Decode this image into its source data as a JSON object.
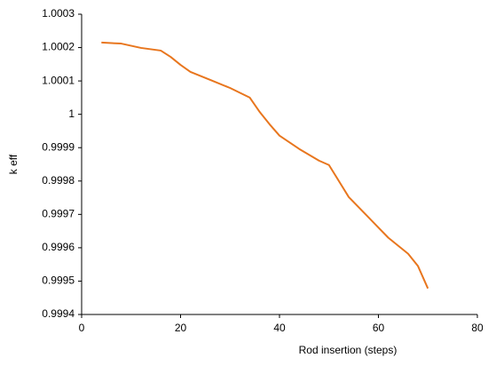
{
  "chart_data": {
    "type": "line",
    "xlabel": "Rod insertion (steps)",
    "ylabel": "k eff",
    "x": [
      4,
      8,
      12,
      16,
      18,
      20,
      22,
      26,
      30,
      34,
      36,
      38,
      40,
      44,
      48,
      50,
      52,
      54,
      58,
      62,
      66,
      68,
      70
    ],
    "series": [
      {
        "name": "k eff",
        "color": "#e8761e",
        "values": [
          1.000215,
          1.000212,
          1.000199,
          1.000191,
          1.000172,
          1.000148,
          1.000127,
          1.000103,
          1.000079,
          1.00005,
          1.000007,
          0.99997,
          0.999936,
          0.999896,
          0.999861,
          0.999848,
          0.9998,
          0.999752,
          0.999691,
          0.99963,
          0.999582,
          0.999545,
          0.999478
        ]
      }
    ],
    "xlim": [
      0,
      80
    ],
    "xticks": [
      0,
      20,
      40,
      60,
      80
    ],
    "ylim": [
      0.9994,
      1.0003
    ],
    "yticks": [
      0.9994,
      0.9995,
      0.9996,
      0.9997,
      0.9998,
      0.9999,
      1,
      1.0001,
      1.0002,
      1.0003
    ],
    "grid": false
  }
}
